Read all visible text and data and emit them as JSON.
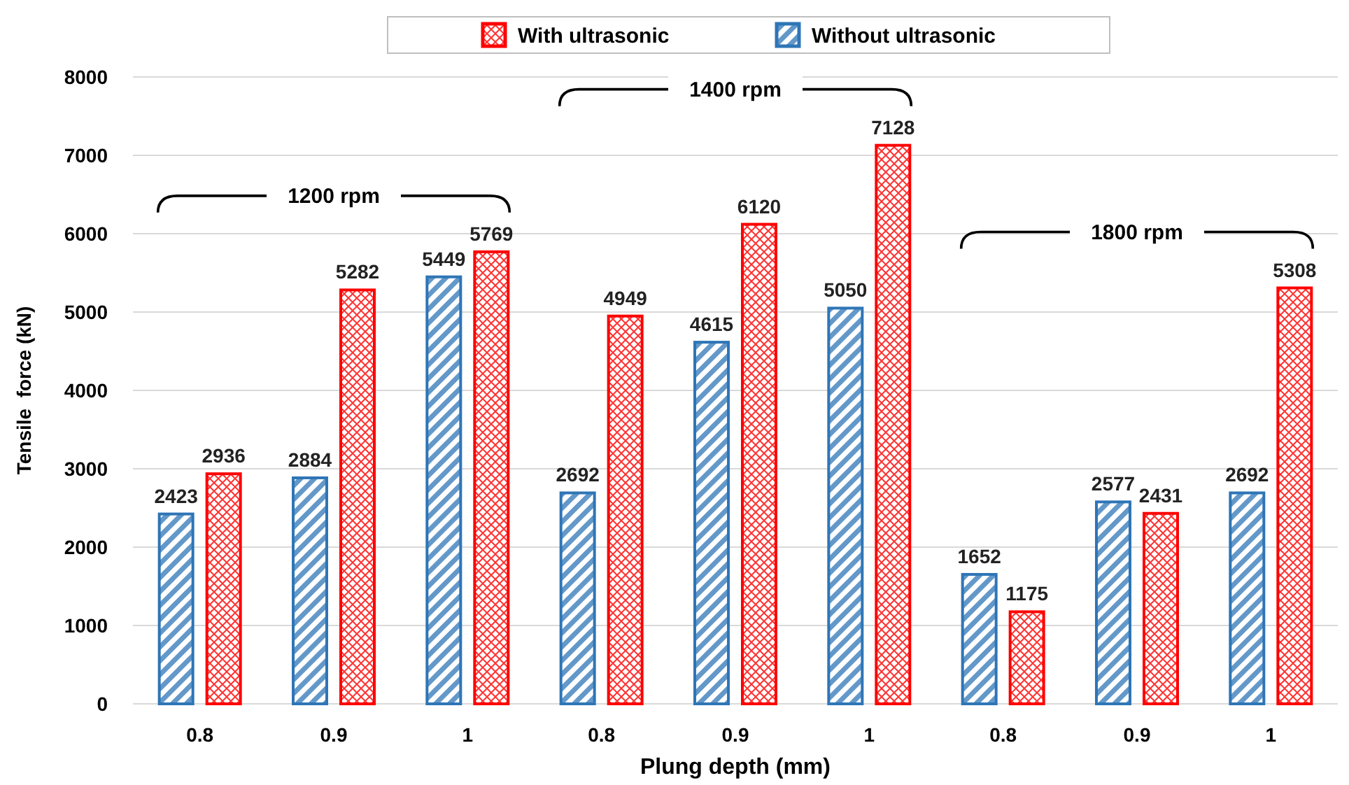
{
  "chart_data": {
    "type": "bar",
    "xlabel": "Plung depth (mm)",
    "ylabel": "Tensile  force (kN)",
    "categories": [
      "0.8",
      "0.9",
      "1",
      "0.8",
      "0.9",
      "1",
      "0.8",
      "0.9",
      "1"
    ],
    "series": [
      {
        "name": "Without ultrasonic",
        "color": "#2e75b6",
        "values": [
          2423,
          2884,
          5449,
          2692,
          4615,
          5050,
          1652,
          2577,
          2692
        ]
      },
      {
        "name": "With ultrasonic",
        "color": "#ff0000",
        "values": [
          2936,
          5282,
          5769,
          4949,
          6120,
          7128,
          1175,
          2431,
          5308
        ]
      }
    ],
    "ylim": [
      0,
      8000
    ],
    "yticks": [
      0,
      1000,
      2000,
      3000,
      4000,
      5000,
      6000,
      7000,
      8000
    ],
    "grid": "y",
    "legend": "top",
    "data_labels": true,
    "annotations": [
      "1200 rpm",
      "1400 rpm",
      "1800 rpm"
    ]
  }
}
